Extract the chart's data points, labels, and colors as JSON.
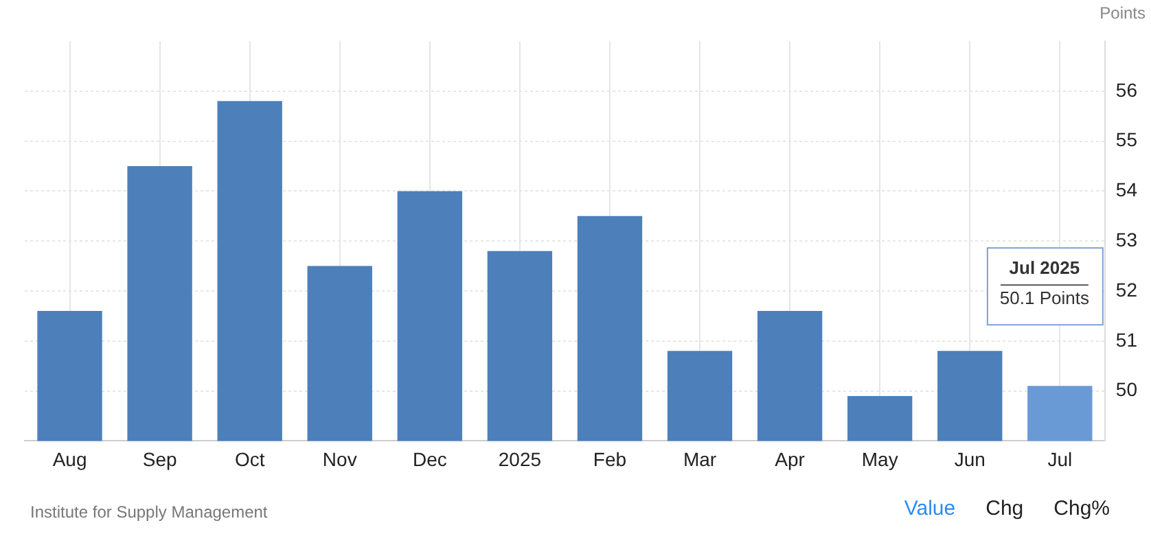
{
  "chart_data": {
    "type": "bar",
    "ylabel": "Points",
    "categories": [
      "Aug",
      "Sep",
      "Oct",
      "Nov",
      "Dec",
      "2025",
      "Feb",
      "Mar",
      "Apr",
      "May",
      "Jun",
      "Jul"
    ],
    "values": [
      51.6,
      54.5,
      55.8,
      52.5,
      54.0,
      52.8,
      53.5,
      50.8,
      51.6,
      49.9,
      50.8,
      50.1
    ],
    "colors": [
      "#4d7fbb",
      "#4d7fbb",
      "#4d7fbb",
      "#4d7fbb",
      "#4d7fbb",
      "#4d7fbb",
      "#4d7fbb",
      "#4d7fbb",
      "#4d7fbb",
      "#4d7fbb",
      "#4d7fbb",
      "#6a9ad6"
    ],
    "ylim": [
      49,
      57
    ],
    "yticks": [
      50,
      51,
      52,
      53,
      54,
      55,
      56
    ],
    "grid": true,
    "legend": false,
    "annotations": [
      "Jul 2025",
      "50.1 Points",
      "Institute for Supply Management",
      "Value",
      "Chg",
      "Chg%"
    ]
  }
}
